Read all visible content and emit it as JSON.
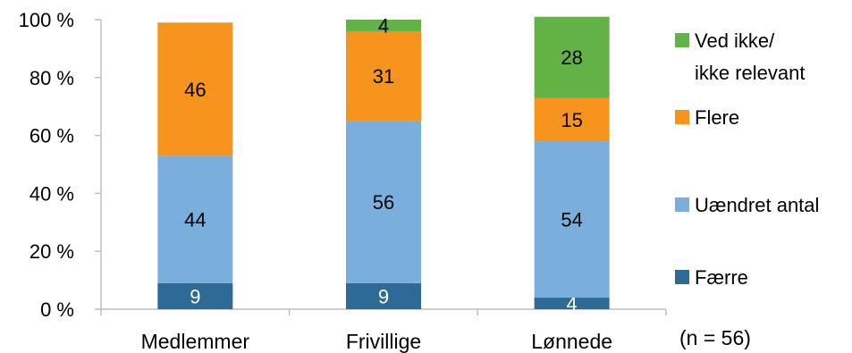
{
  "chart_data": {
    "type": "bar",
    "stacked": true,
    "percent_scale": true,
    "categories": [
      "Medlemmer",
      "Frivillige",
      "Lønnede"
    ],
    "series": [
      {
        "name": "Færre",
        "values": [
          9,
          9,
          4
        ],
        "color": "#2e6a96",
        "label_color": "#ffffff"
      },
      {
        "name": "Uændret antal",
        "values": [
          44,
          56,
          54
        ],
        "color": "#7aaedc",
        "label_color": "#000000"
      },
      {
        "name": "Flere",
        "values": [
          46,
          31,
          15
        ],
        "color": "#f7941d",
        "label_color": "#000000"
      },
      {
        "name": "Ved ikke/ ikke relevant",
        "name_lines": [
          "Ved ikke/",
          "ikke relevant"
        ],
        "values": [
          0,
          4,
          28
        ],
        "color": "#62b246",
        "label_color": "#000000"
      }
    ],
    "y_ticks": [
      "0 %",
      "20 %",
      "40 %",
      "60 %",
      "80 %",
      "100 %"
    ],
    "ylim": [
      0,
      100
    ],
    "grid": false,
    "legend_position": "right",
    "note": "(n = 56)"
  }
}
